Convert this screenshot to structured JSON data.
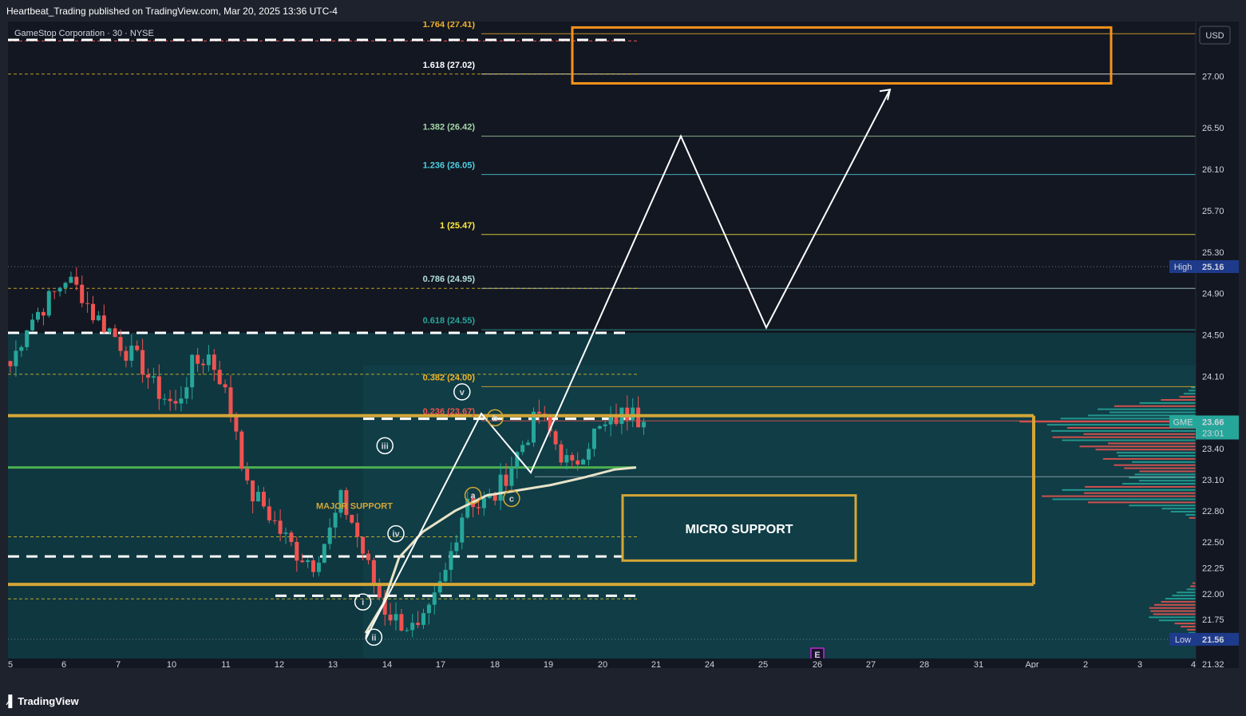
{
  "header": {
    "publish_line": "Heartbeat_Trading published on TradingView.com, Mar 20, 2025 13:36 UTC-4"
  },
  "footer": {
    "brand": "TradingView",
    "brand_icon": "tradingview-logo-icon"
  },
  "colors": {
    "bg": "#131722",
    "zone_fill": "#0f3d45",
    "up_candle": "#26a69a",
    "down_candle": "#ef5350",
    "orange": "#f7931a",
    "gold": "#d4a637",
    "green_line": "#4caf50",
    "white": "#ffffff",
    "ma_line": "#e8e3c8"
  },
  "chart_data": {
    "type": "candlestick",
    "symbol": "GME",
    "currency": "USD",
    "ylim": [
      21.32,
      27.45
    ],
    "price_ticks": [
      27.0,
      26.5,
      26.1,
      25.7,
      25.3,
      24.9,
      24.5,
      24.1,
      23.4,
      23.1,
      22.8,
      22.5,
      22.25,
      22.0,
      21.75,
      21.32
    ],
    "price_tick_labels": [
      "27.00",
      "26.50",
      "26.10",
      "25.70",
      "25.30",
      "24.90",
      "24.50",
      "24.10",
      "23.40",
      "23.10",
      "22.80",
      "22.50",
      "22.25",
      "22.00",
      "21.75",
      "21.32"
    ],
    "x_ticks": [
      "5",
      "6",
      "7",
      "10",
      "11",
      "12",
      "13",
      "14",
      "17",
      "18",
      "19",
      "20",
      "21",
      "24",
      "25",
      "26",
      "27",
      "28",
      "31",
      "Apr",
      "2",
      "3",
      "4"
    ],
    "fib_levels": [
      {
        "label": "1.764 (27.41)",
        "price": 27.41,
        "color": "#f0b429"
      },
      {
        "label": "1.618 (27.02)",
        "price": 27.02,
        "color": "#ffffff"
      },
      {
        "label": "1.382 (26.42)",
        "price": 26.42,
        "color": "#a5d6a7"
      },
      {
        "label": "1.236 (26.05)",
        "price": 26.05,
        "color": "#4dd0e1"
      },
      {
        "label": "1 (25.47)",
        "price": 25.47,
        "color": "#ffeb3b"
      },
      {
        "label": "0.786 (24.95)",
        "price": 24.95,
        "color": "#b2dfdb"
      },
      {
        "label": "0.618 (24.55)",
        "price": 24.55,
        "color": "#26a69a"
      },
      {
        "label": "0.382 (24.00)",
        "price": 24.0,
        "color": "#f0b429"
      },
      {
        "label": "0.236 (23.67)",
        "price": 23.67,
        "color": "#ef5350"
      }
    ],
    "price_badges": [
      {
        "label": "High",
        "value": "25.16",
        "price": 25.16,
        "color": "#1e3a8a"
      },
      {
        "label": "GME",
        "value": "23.66",
        "sub": "23:01",
        "price": 23.66,
        "color": "#26a69a"
      },
      {
        "label": "Low",
        "value": "21.56",
        "price": 21.56,
        "color": "#1e3a8a"
      }
    ],
    "wave_labels": [
      {
        "text": "v",
        "bar": 82,
        "price": 23.95,
        "color": "#ffffff"
      },
      {
        "text": "iii",
        "bar": 68,
        "price": 23.43,
        "color": "#ffffff"
      },
      {
        "text": "iv",
        "bar": 70,
        "price": 22.58,
        "color": "#ffffff"
      },
      {
        "text": "i",
        "bar": 64,
        "price": 21.92,
        "color": "#ffffff"
      },
      {
        "text": "ii",
        "bar": 66,
        "price": 21.58,
        "color": "#ffffff"
      },
      {
        "text": "b",
        "bar": 88,
        "price": 23.7,
        "color": "#d4a637"
      },
      {
        "text": "a",
        "bar": 84,
        "price": 22.95,
        "color": "#d4a637"
      },
      {
        "text": "c",
        "bar": 91,
        "price": 22.92,
        "color": "#d4a637"
      }
    ],
    "annotations": {
      "major_support": "MAJOR SUPPORT",
      "micro_support": "MICRO SUPPORT",
      "earnings_marker": "E"
    },
    "legend_line": "GameStop Corporation · 30 · NYSE"
  }
}
